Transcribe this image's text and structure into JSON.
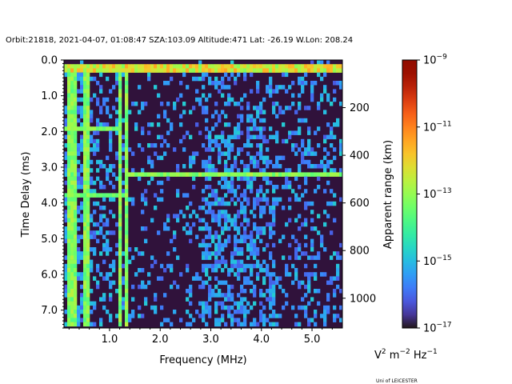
{
  "chart_data": {
    "type": "heatmap",
    "title": "Orbit:21818, 2021-04-07, 01:08:47 SZA:103.09 Altitude:471 Lat: -26.19 W.Lon: 208.24",
    "xlabel": "Frequency (MHz)",
    "ylabel": "Time Delay (ms)",
    "y2label": "Apparent range (km)",
    "xlim": [
      0.1,
      5.6
    ],
    "ylim": [
      7.5,
      0.0
    ],
    "x_ticks": [
      1.0,
      2.0,
      3.0,
      4.0,
      5.0
    ],
    "x_tick_labels": [
      "1.0",
      "2.0",
      "3.0",
      "4.0",
      "5.0"
    ],
    "y_ticks": [
      0.0,
      1.0,
      2.0,
      3.0,
      4.0,
      5.0,
      6.0,
      7.0
    ],
    "y_tick_labels": [
      "0.0",
      "1.0",
      "2.0",
      "3.0",
      "4.0",
      "5.0",
      "6.0",
      "7.0"
    ],
    "y2_ticks_km": [
      200,
      400,
      600,
      800,
      1000
    ],
    "y2_tick_labels": [
      "200",
      "400",
      "600",
      "800",
      "1000"
    ],
    "colorbar": {
      "label": "V2 m-2 Hz-1",
      "label_main": "V",
      "label_sup1": "2",
      "label_mid": " m",
      "label_sup2": "−2",
      "label_tail": " Hz",
      "label_sup3": "−1",
      "colormap": "turbo",
      "scale": "log",
      "range": [
        1e-17,
        1e-09
      ],
      "tick_exponents": [
        -9,
        -11,
        -13,
        -15,
        -17
      ],
      "tick_base": "10",
      "tick_sups": [
        "−9",
        "−11",
        "−13",
        "−15",
        "−17"
      ]
    },
    "features": {
      "vertical_lines_MHz": [
        0.18,
        0.25,
        0.32,
        0.52,
        0.6,
        1.2,
        1.33
      ],
      "horizontal_echoes_ms": [
        0.25,
        1.95,
        3.2,
        3.8
      ],
      "echo_3p2_start_MHz": 1.3,
      "diffuse_region_MHz": [
        2.8,
        5.6
      ]
    },
    "credit": "Uni of LEICESTER"
  }
}
